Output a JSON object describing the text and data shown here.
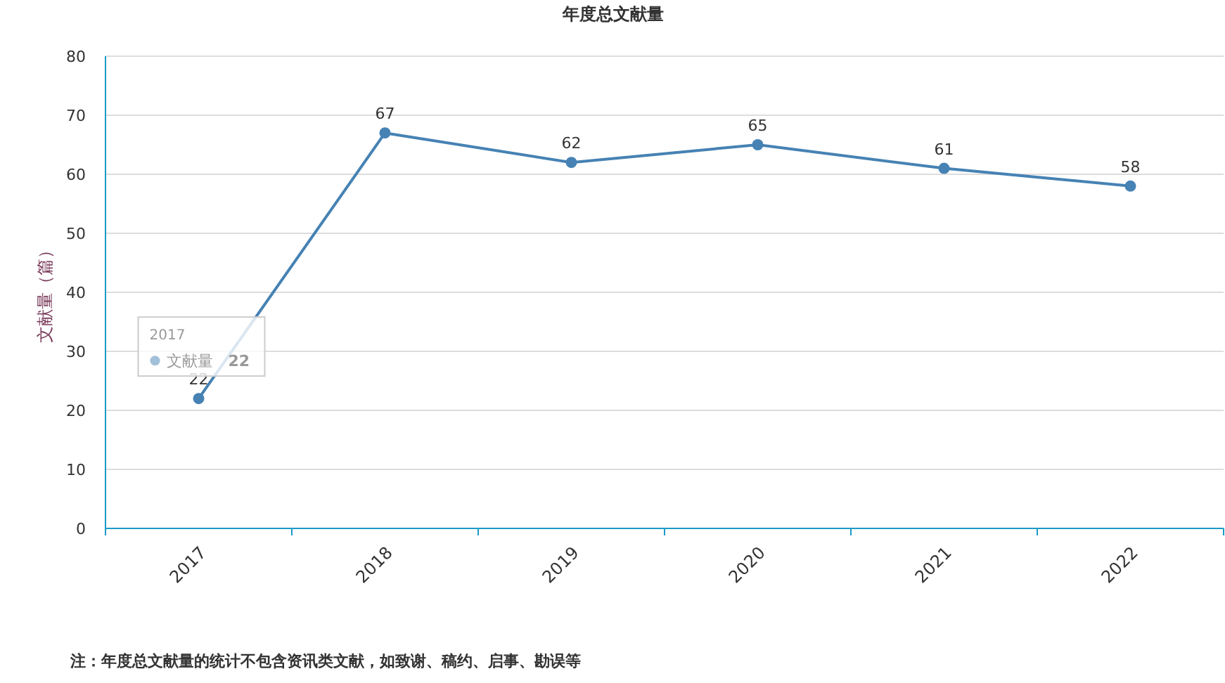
{
  "chart_data": {
    "type": "line",
    "title": "年度总文献量",
    "ylabel": "文献量（篇）",
    "categories": [
      "2017",
      "2018",
      "2019",
      "2020",
      "2021",
      "2022"
    ],
    "series": [
      {
        "name": "文献量",
        "color": "#4682b4",
        "values": [
          22,
          67,
          62,
          65,
          61,
          58
        ]
      }
    ],
    "ylim": [
      0,
      80
    ],
    "yticks": [
      0,
      10,
      20,
      30,
      40,
      50,
      60,
      70,
      80
    ],
    "grid": "y",
    "data_labels": true,
    "marker": "circle",
    "legend": "left",
    "annotations": [
      {
        "text": "22",
        "x": "2017",
        "y": 22
      },
      "注：年度总文献量的统计不包含资讯类文献，如致谢、稿约、启事、勘误等"
    ]
  }
}
